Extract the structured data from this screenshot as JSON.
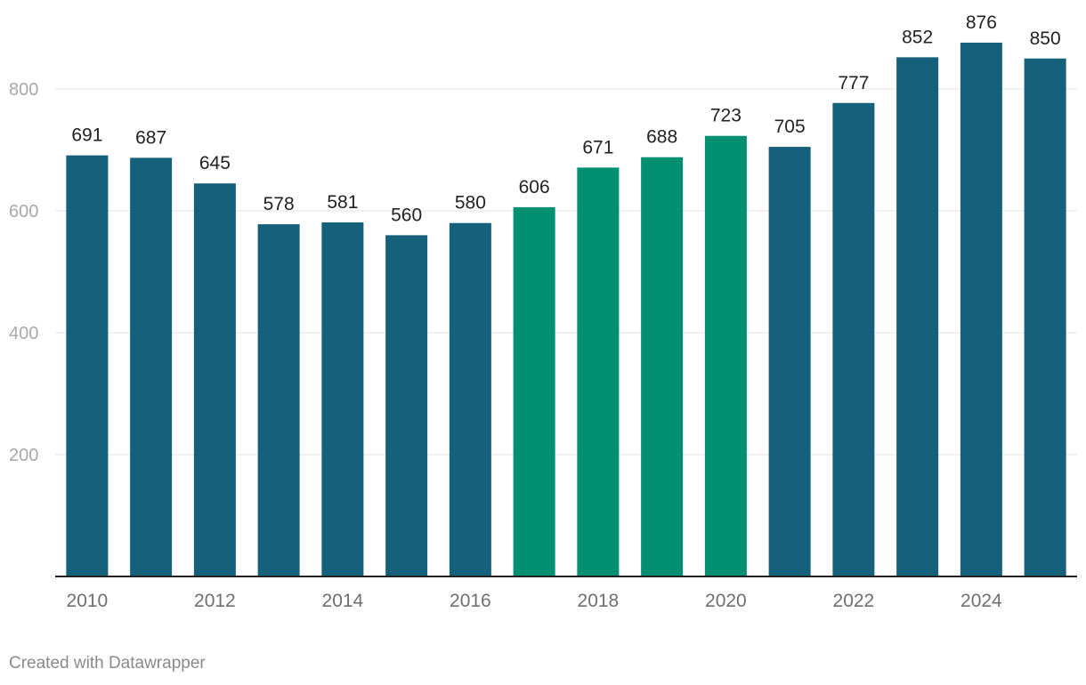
{
  "chart_data": {
    "type": "bar",
    "categories": [
      "2010",
      "2011",
      "2012",
      "2013",
      "2014",
      "2015",
      "2016",
      "2017",
      "2018",
      "2019",
      "2020",
      "2021",
      "2022",
      "2023",
      "2024",
      "2025"
    ],
    "values": [
      691,
      687,
      645,
      578,
      581,
      560,
      580,
      606,
      671,
      688,
      723,
      705,
      777,
      852,
      876,
      850
    ],
    "highlighted": [
      false,
      false,
      false,
      false,
      false,
      false,
      false,
      true,
      true,
      true,
      true,
      false,
      false,
      false,
      false,
      false
    ],
    "x_tick_labels": [
      "2010",
      "2012",
      "2014",
      "2016",
      "2018",
      "2020",
      "2022",
      "2024"
    ],
    "y_ticks": [
      200,
      400,
      600,
      800
    ],
    "ylim": [
      0,
      900
    ],
    "grid": true,
    "title": "",
    "xlabel": "",
    "ylabel": "",
    "colors": {
      "default": "#15607a",
      "highlight": "#008f73"
    }
  },
  "footer": {
    "credit": "Created with Datawrapper"
  }
}
